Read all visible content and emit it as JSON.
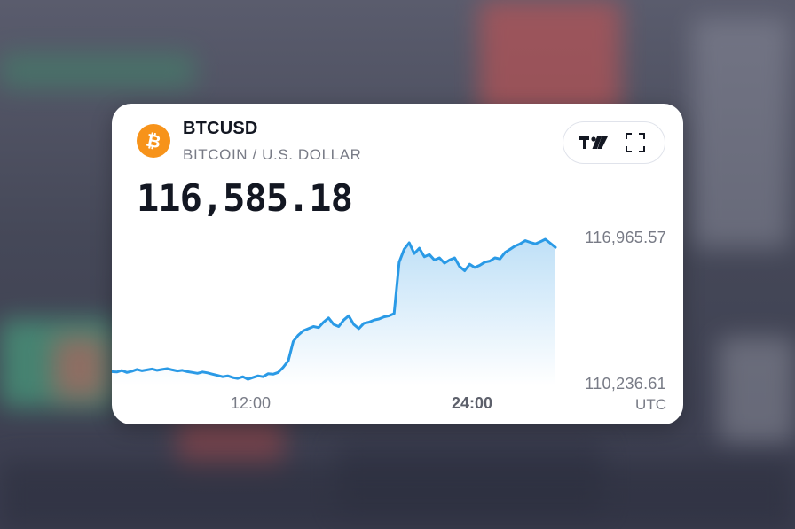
{
  "widget": {
    "symbol": "BTCUSD",
    "description": "BITCOIN / U.S. DOLLAR",
    "price": "116,585.18",
    "price_high_label": "116,965.57",
    "price_low_label": "110,236.61",
    "time_labels": [
      "12:00",
      "24:00"
    ],
    "timezone": "UTC"
  },
  "colors": {
    "line": "#2a9ae6",
    "fill_top": "#bfe0f7",
    "fill_bottom": "#ffffff",
    "btc_orange": "#f7931a"
  },
  "icons": {
    "logo": "bitcoin-icon",
    "tradingview": "tradingview-logo-icon",
    "fullscreen": "fullscreen-icon"
  },
  "chart_data": {
    "type": "area",
    "y_axis_labels": [
      "116,965.57",
      "110,236.61"
    ],
    "x_tick_labels": [
      "12:00",
      "24:00"
    ],
    "series": [
      {
        "values": [
          110800,
          110780,
          110850,
          110760,
          110820,
          110900,
          110840,
          110880,
          110920,
          110860,
          110900,
          110940,
          110880,
          110830,
          110860,
          110800,
          110760,
          110720,
          110780,
          110740,
          110680,
          110620,
          110560,
          110600,
          110520,
          110480,
          110560,
          110440,
          110520,
          110600,
          110560,
          110700,
          110680,
          110760,
          111000,
          111300,
          112200,
          112500,
          112700,
          112800,
          112900,
          112850,
          113100,
          113300,
          113000,
          112900,
          113200,
          113400,
          113000,
          112800,
          113050,
          113100,
          113200,
          113250,
          113350,
          113400,
          113500,
          115900,
          116500,
          116800,
          116300,
          116550,
          116150,
          116250,
          116000,
          116100,
          115850,
          116000,
          116100,
          115700,
          115500,
          115800,
          115650,
          115750,
          115900,
          115950,
          116100,
          116050,
          116350,
          116500,
          116650,
          116750,
          116900,
          116820,
          116750,
          116850,
          116965,
          116780,
          116585
        ]
      }
    ]
  }
}
